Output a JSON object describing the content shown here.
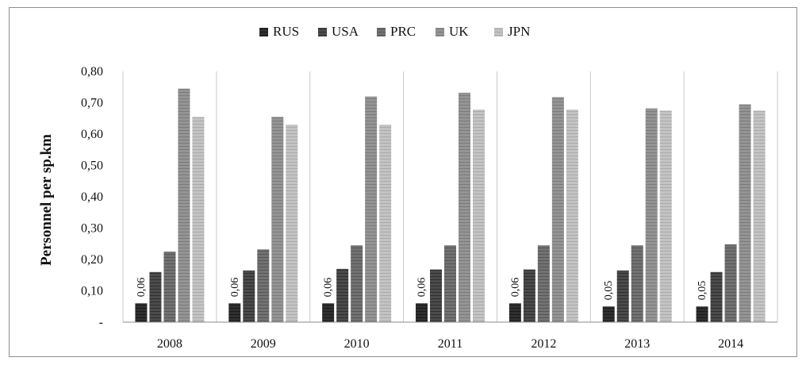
{
  "chart_data": {
    "type": "bar",
    "title": "",
    "xlabel": "",
    "ylabel": "Personnel per sp.km",
    "categories": [
      "2008",
      "2009",
      "2010",
      "2011",
      "2012",
      "2013",
      "2014"
    ],
    "ylim": [
      0,
      0.8
    ],
    "yticks": [
      0,
      0.1,
      0.2,
      0.3,
      0.4,
      0.5,
      0.6,
      0.7,
      0.8
    ],
    "ytick_labels": [
      "-",
      "0,10",
      "0,20",
      "0,30",
      "0,40",
      "0,50",
      "0,60",
      "0,70",
      "0,80"
    ],
    "grid": "vertical separators between categories",
    "legend_position": "top-center",
    "series": [
      {
        "name": "RUS",
        "color": "#2f2f2f",
        "values": [
          0.06,
          0.06,
          0.06,
          0.06,
          0.06,
          0.05,
          0.05
        ],
        "data_labels": [
          "0,06",
          "0,06",
          "0,06",
          "0,06",
          "0,06",
          "0,05",
          "0,05"
        ]
      },
      {
        "name": "USA",
        "color": "#4b4b4b",
        "values": [
          0.16,
          0.165,
          0.17,
          0.168,
          0.168,
          0.165,
          0.16
        ]
      },
      {
        "name": "PRC",
        "color": "#6d6d6d",
        "values": [
          0.225,
          0.232,
          0.245,
          0.245,
          0.245,
          0.245,
          0.248
        ]
      },
      {
        "name": "UK",
        "color": "#8f8f8f",
        "values": [
          0.745,
          0.655,
          0.72,
          0.732,
          0.718,
          0.682,
          0.695
        ]
      },
      {
        "name": "JPN",
        "color": "#b9b9b9",
        "values": [
          0.655,
          0.63,
          0.63,
          0.678,
          0.678,
          0.675,
          0.675
        ]
      }
    ]
  }
}
